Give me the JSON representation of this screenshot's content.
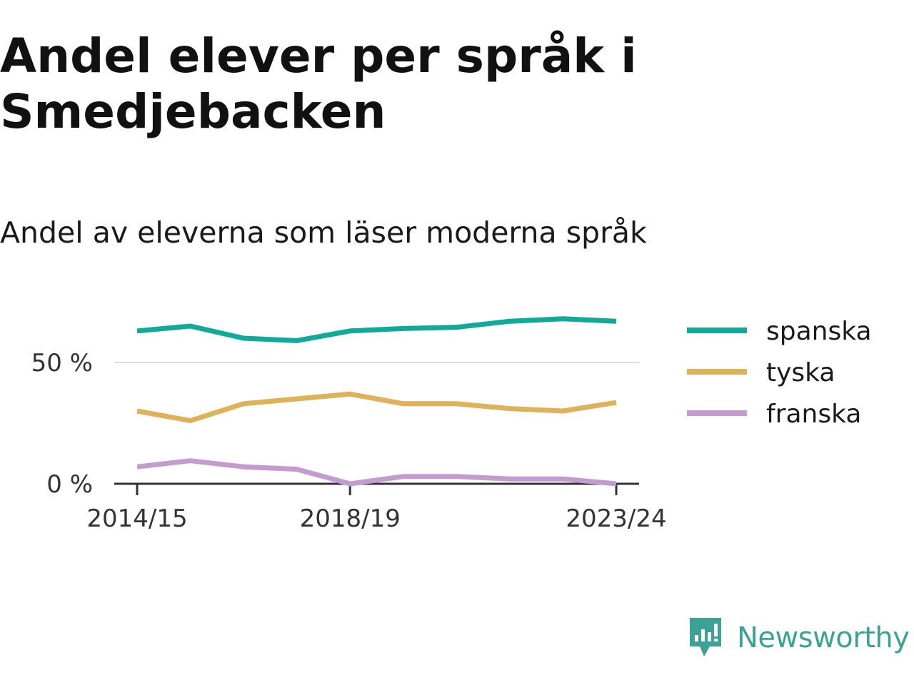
{
  "title": "Andel elever per språk i Smedjebacken",
  "subtitle": "Andel av eleverna som läser moderna språk",
  "brand": {
    "name": "Newsworthy",
    "logo_icon": "newsworthy-logo-icon",
    "color": "#3aa395"
  },
  "chart_data": {
    "type": "line",
    "x": [
      "2014/15",
      "2015/16",
      "2016/17",
      "2017/18",
      "2018/19",
      "2019/20",
      "2020/21",
      "2021/22",
      "2022/23",
      "2023/24"
    ],
    "x_tick_labels": [
      "2014/15",
      "2018/19",
      "2023/24"
    ],
    "y_ticks": [
      {
        "value": 0,
        "label": "0 %"
      },
      {
        "value": 50,
        "label": "50 %"
      }
    ],
    "ylim": [
      0,
      70
    ],
    "grid": true,
    "legend_position": "right",
    "series": [
      {
        "name": "spanska",
        "color": "#12a89a",
        "values": [
          63,
          65,
          60,
          59,
          63,
          64,
          64.5,
          67,
          68,
          67
        ]
      },
      {
        "name": "tyska",
        "color": "#dfb159",
        "values": [
          30,
          26,
          33,
          35,
          37,
          33,
          33,
          31,
          30,
          33.5
        ]
      },
      {
        "name": "franska",
        "color": "#c39bd1",
        "values": [
          7,
          9.5,
          7,
          6,
          0,
          3,
          3,
          2,
          2,
          0
        ]
      }
    ]
  }
}
